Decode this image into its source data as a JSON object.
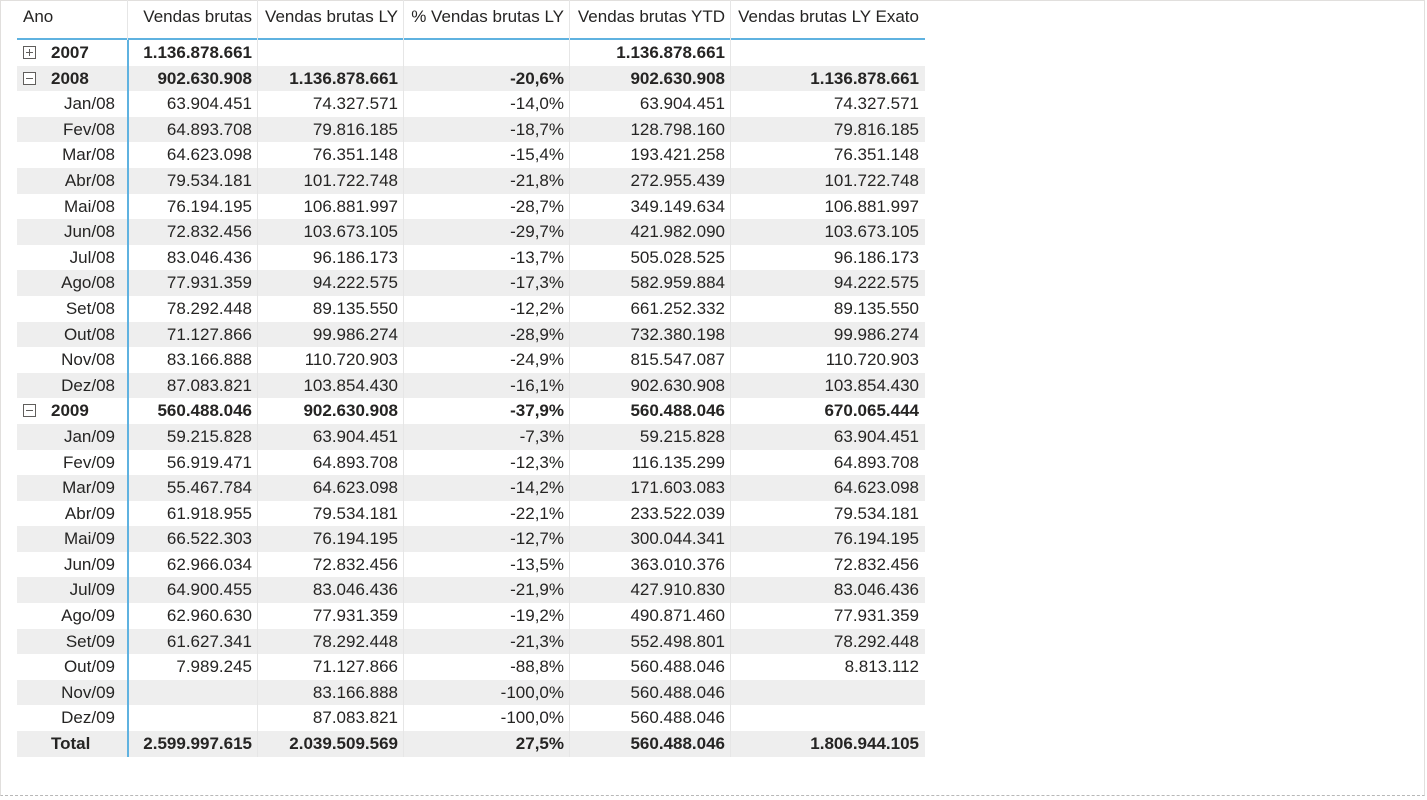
{
  "columns": [
    "Ano",
    "Vendas brutas",
    "Vendas brutas LY",
    "% Vendas brutas LY",
    "Vendas brutas YTD",
    "Vendas brutas LY Exato"
  ],
  "rows": [
    {
      "label": "2007",
      "level": 0,
      "toggle": "plus",
      "bold": true,
      "values": [
        "1.136.878.661",
        "",
        "",
        "1.136.878.661",
        ""
      ]
    },
    {
      "label": "2008",
      "level": 0,
      "toggle": "minus",
      "bold": true,
      "values": [
        "902.630.908",
        "1.136.878.661",
        "-20,6%",
        "902.630.908",
        "1.136.878.661"
      ]
    },
    {
      "label": "Jan/08",
      "level": 1,
      "values": [
        "63.904.451",
        "74.327.571",
        "-14,0%",
        "63.904.451",
        "74.327.571"
      ]
    },
    {
      "label": "Fev/08",
      "level": 1,
      "values": [
        "64.893.708",
        "79.816.185",
        "-18,7%",
        "128.798.160",
        "79.816.185"
      ]
    },
    {
      "label": "Mar/08",
      "level": 1,
      "values": [
        "64.623.098",
        "76.351.148",
        "-15,4%",
        "193.421.258",
        "76.351.148"
      ]
    },
    {
      "label": "Abr/08",
      "level": 1,
      "values": [
        "79.534.181",
        "101.722.748",
        "-21,8%",
        "272.955.439",
        "101.722.748"
      ]
    },
    {
      "label": "Mai/08",
      "level": 1,
      "values": [
        "76.194.195",
        "106.881.997",
        "-28,7%",
        "349.149.634",
        "106.881.997"
      ]
    },
    {
      "label": "Jun/08",
      "level": 1,
      "values": [
        "72.832.456",
        "103.673.105",
        "-29,7%",
        "421.982.090",
        "103.673.105"
      ]
    },
    {
      "label": "Jul/08",
      "level": 1,
      "values": [
        "83.046.436",
        "96.186.173",
        "-13,7%",
        "505.028.525",
        "96.186.173"
      ]
    },
    {
      "label": "Ago/08",
      "level": 1,
      "values": [
        "77.931.359",
        "94.222.575",
        "-17,3%",
        "582.959.884",
        "94.222.575"
      ]
    },
    {
      "label": "Set/08",
      "level": 1,
      "values": [
        "78.292.448",
        "89.135.550",
        "-12,2%",
        "661.252.332",
        "89.135.550"
      ]
    },
    {
      "label": "Out/08",
      "level": 1,
      "values": [
        "71.127.866",
        "99.986.274",
        "-28,9%",
        "732.380.198",
        "99.986.274"
      ]
    },
    {
      "label": "Nov/08",
      "level": 1,
      "values": [
        "83.166.888",
        "110.720.903",
        "-24,9%",
        "815.547.087",
        "110.720.903"
      ]
    },
    {
      "label": "Dez/08",
      "level": 1,
      "values": [
        "87.083.821",
        "103.854.430",
        "-16,1%",
        "902.630.908",
        "103.854.430"
      ]
    },
    {
      "label": "2009",
      "level": 0,
      "toggle": "minus",
      "bold": true,
      "values": [
        "560.488.046",
        "902.630.908",
        "-37,9%",
        "560.488.046",
        "670.065.444"
      ]
    },
    {
      "label": "Jan/09",
      "level": 1,
      "values": [
        "59.215.828",
        "63.904.451",
        "-7,3%",
        "59.215.828",
        "63.904.451"
      ]
    },
    {
      "label": "Fev/09",
      "level": 1,
      "values": [
        "56.919.471",
        "64.893.708",
        "-12,3%",
        "116.135.299",
        "64.893.708"
      ]
    },
    {
      "label": "Mar/09",
      "level": 1,
      "values": [
        "55.467.784",
        "64.623.098",
        "-14,2%",
        "171.603.083",
        "64.623.098"
      ]
    },
    {
      "label": "Abr/09",
      "level": 1,
      "values": [
        "61.918.955",
        "79.534.181",
        "-22,1%",
        "233.522.039",
        "79.534.181"
      ]
    },
    {
      "label": "Mai/09",
      "level": 1,
      "values": [
        "66.522.303",
        "76.194.195",
        "-12,7%",
        "300.044.341",
        "76.194.195"
      ]
    },
    {
      "label": "Jun/09",
      "level": 1,
      "values": [
        "62.966.034",
        "72.832.456",
        "-13,5%",
        "363.010.376",
        "72.832.456"
      ]
    },
    {
      "label": "Jul/09",
      "level": 1,
      "values": [
        "64.900.455",
        "83.046.436",
        "-21,9%",
        "427.910.830",
        "83.046.436"
      ]
    },
    {
      "label": "Ago/09",
      "level": 1,
      "values": [
        "62.960.630",
        "77.931.359",
        "-19,2%",
        "490.871.460",
        "77.931.359"
      ]
    },
    {
      "label": "Set/09",
      "level": 1,
      "values": [
        "61.627.341",
        "78.292.448",
        "-21,3%",
        "552.498.801",
        "78.292.448"
      ]
    },
    {
      "label": "Out/09",
      "level": 1,
      "values": [
        "7.989.245",
        "71.127.866",
        "-88,8%",
        "560.488.046",
        "8.813.112"
      ]
    },
    {
      "label": "Nov/09",
      "level": 1,
      "values": [
        "",
        "83.166.888",
        "-100,0%",
        "560.488.046",
        ""
      ]
    },
    {
      "label": "Dez/09",
      "level": 1,
      "values": [
        "",
        "87.083.821",
        "-100,0%",
        "560.488.046",
        ""
      ]
    },
    {
      "label": "Total",
      "level": 0,
      "total": true,
      "bold": true,
      "values": [
        "2.599.997.615",
        "2.039.509.569",
        "27,5%",
        "560.488.046",
        "1.806.944.105"
      ]
    }
  ]
}
